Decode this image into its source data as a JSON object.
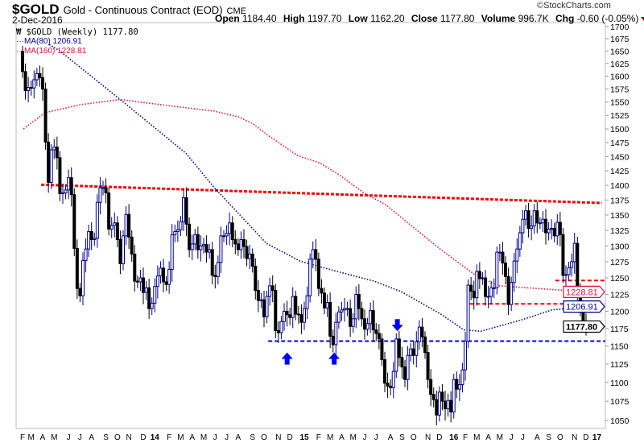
{
  "header": {
    "symbol": "$GOLD",
    "name": "Gold - Continuous Contract (EOD)",
    "exchange": "CME",
    "date": "2-Dec-2016",
    "copyright": "©StockCharts.com",
    "quote": {
      "open_label": "Open",
      "open": "1184.40",
      "high_label": "High",
      "high": "1197.70",
      "low_label": "Low",
      "low": "1162.20",
      "close_label": "Close",
      "close": "1177.80",
      "volume_label": "Volume",
      "volume": "996.7K",
      "chg_label": "Chg",
      "chg": "-0.60 (-0.05%)"
    }
  },
  "legend": {
    "price": "$GOLD (Weekly) 1177.80",
    "ma80": "MA(80) 1206.91",
    "ma160": "MA(160) 1228.81"
  },
  "chart_data": {
    "type": "candlestick",
    "y_scale": "log",
    "ylim": [
      1050,
      1700
    ],
    "y_ticks": [
      "1700",
      "1675",
      "1650",
      "1625",
      "1600",
      "1575",
      "1550",
      "1525",
      "1500",
      "1475",
      "1450",
      "1425",
      "1400",
      "1375",
      "1350",
      "1325",
      "1300",
      "1275",
      "1250",
      "1225",
      "1200",
      "1175",
      "1150",
      "1125",
      "1100",
      "1075",
      "1050"
    ],
    "x_tick_labels": [
      "F",
      "M",
      "A",
      "M",
      "J",
      "J",
      "A",
      "S",
      "O",
      "N",
      "D",
      "14",
      "F",
      "M",
      "A",
      "M",
      "J",
      "J",
      "A",
      "S",
      "O",
      "N",
      "D",
      "15",
      "F",
      "M",
      "A",
      "M",
      "J",
      "J",
      "A",
      "S",
      "O",
      "N",
      "D",
      "16",
      "F",
      "M",
      "A",
      "M",
      "J",
      "J",
      "A",
      "S",
      "O",
      "N",
      "D",
      "17"
    ],
    "weekly_closes": {
      "2013-02": [
        1609,
        1572,
        1578
      ],
      "2013-03": [
        1577,
        1593,
        1605,
        1597
      ],
      "2013-04": [
        1575,
        1476,
        1405,
        1462
      ],
      "2013-05": [
        1467,
        1448,
        1386,
        1387,
        1392
      ],
      "2013-06": [
        1413,
        1384,
        1296,
        1234
      ],
      "2013-07": [
        1223,
        1277,
        1295,
        1323
      ],
      "2013-08": [
        1310,
        1312,
        1371,
        1396,
        1396
      ],
      "2013-09": [
        1387,
        1327,
        1333,
        1337
      ],
      "2013-10": [
        1310,
        1272,
        1316,
        1351
      ],
      "2013-11": [
        1314,
        1287,
        1245,
        1244,
        1250
      ],
      "2013-12": [
        1228,
        1235,
        1204,
        1212
      ],
      "2014-01": [
        1237,
        1253,
        1265,
        1244,
        1240
      ],
      "2014-02": [
        1263,
        1318,
        1323,
        1326
      ],
      "2014-03": [
        1339,
        1379,
        1335,
        1294
      ],
      "2014-04": [
        1303,
        1318,
        1294,
        1300
      ],
      "2014-05": [
        1302,
        1290,
        1294,
        1254
      ],
      "2014-06": [
        1252,
        1274,
        1316,
        1316
      ],
      "2014-07": [
        1320,
        1337,
        1310,
        1303
      ],
      "2014-08": [
        1294,
        1310,
        1299,
        1280,
        1287
      ],
      "2014-09": [
        1268,
        1231,
        1216,
        1217
      ],
      "2014-10": [
        1192,
        1222,
        1238,
        1231,
        1172
      ],
      "2014-11": [
        1169,
        1185,
        1200,
        1195
      ],
      "2014-12": [
        1191,
        1222,
        1196,
        1195,
        1184
      ],
      "2015-01": [
        1204,
        1223,
        1279,
        1294,
        1279
      ],
      "2015-02": [
        1234,
        1227,
        1205,
        1213
      ],
      "2015-03": [
        1164,
        1152,
        1184,
        1199
      ],
      "2015-04": [
        1202,
        1204,
        1204,
        1178
      ],
      "2015-05": [
        1189,
        1225,
        1204,
        1189
      ],
      "2015-06": [
        1174,
        1182,
        1201,
        1173
      ],
      "2015-07": [
        1168,
        1160,
        1131,
        1099,
        1095
      ],
      "2015-08": [
        1093,
        1115,
        1160,
        1134
      ],
      "2015-09": [
        1121,
        1104,
        1137,
        1146
      ],
      "2015-10": [
        1137,
        1156,
        1177,
        1163,
        1141
      ],
      "2015-11": [
        1104,
        1084,
        1077,
        1057
      ],
      "2015-12": [
        1087,
        1075,
        1065,
        1076,
        1061
      ],
      "2016-01": [
        1104,
        1091,
        1097,
        1117
      ],
      "2016-02": [
        1157,
        1239,
        1230,
        1220
      ],
      "2016-03": [
        1260,
        1249,
        1250,
        1222
      ],
      "2016-04": [
        1222,
        1235,
        1235,
        1290
      ],
      "2016-05": [
        1290,
        1273,
        1252,
        1210
      ],
      "2016-06": [
        1243,
        1276,
        1295,
        1321
      ],
      "2016-07": [
        1343,
        1357,
        1328,
        1332,
        1357
      ],
      "2016-08": [
        1337,
        1337,
        1343,
        1321
      ],
      "2016-09": [
        1327,
        1328,
        1316,
        1338
      ],
      "2016-10": [
        1318,
        1254,
        1255,
        1266,
        1275
      ],
      "2016-11": [
        1304,
        1228,
        1208,
        1185
      ],
      "2016-12": [
        1177.8
      ]
    },
    "series": [
      {
        "name": "MA(80)",
        "color": "#00008b",
        "style": "dotted",
        "points": [
          [
            "2013-04-17",
            1663
          ],
          [
            "2013-05-12",
            1651
          ],
          [
            "2013-10-08",
            1555
          ],
          [
            "2014-03-14",
            1456
          ],
          [
            "2014-05-26",
            1397
          ],
          [
            "2014-10-06",
            1304
          ],
          [
            "2014-12-23",
            1276
          ],
          [
            "2015-03-18",
            1260
          ],
          [
            "2015-06-24",
            1245
          ],
          [
            "2015-08-28",
            1229
          ],
          [
            "2015-12-04",
            1196
          ],
          [
            "2016-01-26",
            1173
          ],
          [
            "2016-03-11",
            1171
          ],
          [
            "2016-07-01",
            1188
          ],
          [
            "2016-09-09",
            1202
          ],
          [
            "2016-12-02",
            1206.91
          ]
        ]
      },
      {
        "name": "MA(160)",
        "color": "#dc143c",
        "style": "dotted",
        "points": [
          [
            "2013-02-03",
            1500
          ],
          [
            "2013-04-07",
            1530
          ],
          [
            "2013-07-01",
            1545
          ],
          [
            "2013-10-08",
            1555
          ],
          [
            "2013-12-14",
            1548
          ],
          [
            "2014-05-26",
            1533
          ],
          [
            "2014-08-02",
            1522
          ],
          [
            "2014-09-01",
            1510
          ],
          [
            "2014-10-10",
            1488
          ],
          [
            "2014-12-17",
            1452
          ],
          [
            "2015-02-03",
            1439
          ],
          [
            "2015-03-24",
            1418
          ],
          [
            "2015-06-01",
            1386
          ],
          [
            "2015-07-20",
            1368
          ],
          [
            "2015-12-04",
            1294
          ],
          [
            "2016-02-21",
            1256
          ],
          [
            "2016-04-25",
            1238
          ],
          [
            "2016-08-01",
            1234
          ],
          [
            "2016-12-02",
            1228.81
          ]
        ]
      }
    ],
    "annotations": {
      "resistance_trendline": {
        "color": "#ff0000",
        "from": [
          "2013-03-26",
          1401
        ],
        "to": [
          "2017-01-09",
          1370
        ]
      },
      "horizontal_lines": [
        {
          "color": "#ff0000",
          "price": 1246,
          "from": "2016-09-17"
        },
        {
          "color": "#ff0000",
          "price": 1211,
          "from": "2016-02-11"
        },
        {
          "color": "#0000ff",
          "price": 1157,
          "from": "2014-10-10"
        }
      ],
      "arrows": [
        {
          "direction": "up",
          "date": "2014-11-22",
          "price": 1141,
          "color": "#0000ff"
        },
        {
          "direction": "up",
          "date": "2015-03-11",
          "price": 1141,
          "color": "#0000ff"
        },
        {
          "direction": "down",
          "date": "2015-08-18",
          "price": 1171,
          "color": "#0000ff"
        }
      ],
      "price_tags": [
        {
          "text": "1228.81",
          "price": 1228.81,
          "color": "#dc143c"
        },
        {
          "text": "1206.91",
          "price": 1206.91,
          "color": "#00008b"
        },
        {
          "text": "1177.80",
          "price": 1177.8,
          "color": "#000000"
        }
      ]
    },
    "colors": {
      "up_candle": "#00008b",
      "down_candle": "#000000"
    }
  }
}
